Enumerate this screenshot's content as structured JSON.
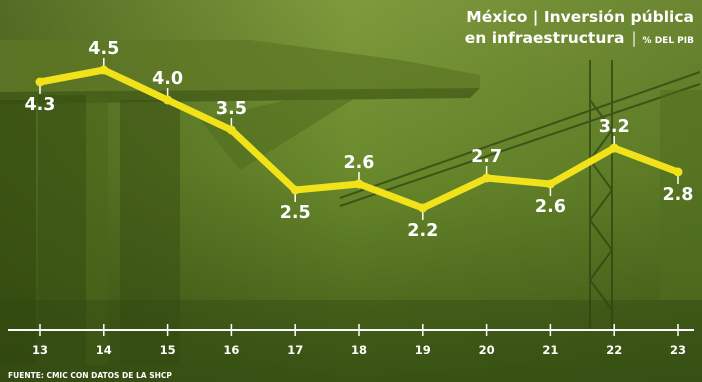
{
  "header": {
    "title_line1": "México | Inversión pública",
    "title_line2": "en infraestructura",
    "unit": "% DEL PIB"
  },
  "source": "FUENTE: CMIC CON DATOS DE LA SHCP",
  "chart_data": {
    "type": "line",
    "title": "México | Inversión pública en infraestructura",
    "ylabel": "% DEL PIB",
    "categories": [
      "13",
      "14",
      "15",
      "16",
      "17",
      "18",
      "19",
      "20",
      "21",
      "22",
      "23"
    ],
    "values": [
      4.3,
      4.5,
      4.0,
      3.5,
      2.5,
      2.6,
      2.2,
      2.7,
      2.6,
      3.2,
      2.8
    ],
    "value_labels": [
      "4.3",
      "4.5",
      "4.0",
      "3.5",
      "2.5",
      "2.6",
      "2.2",
      "2.7",
      "2.6",
      "3.2",
      "2.8"
    ],
    "line_color": "#f2e21a",
    "background_color": "#5e7a2a",
    "grid": false,
    "legend": "none"
  }
}
